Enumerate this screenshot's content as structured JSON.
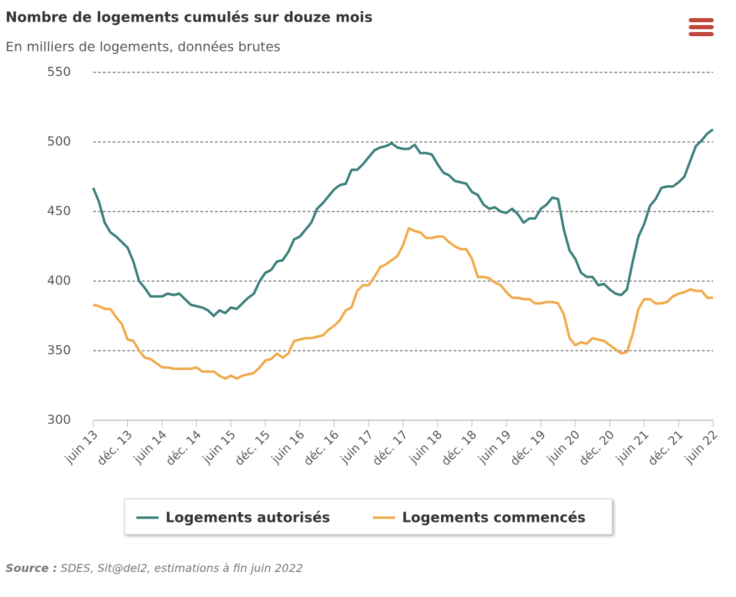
{
  "chart_data": {
    "type": "line",
    "title": "Nombre de logements cumulés sur douze mois",
    "subtitle": "En milliers de logements, données brutes",
    "source": {
      "label": "Source :",
      "text": "SDES, Sit@del2, estimations à fin juin 2022"
    },
    "categories": [
      "juin 13",
      null,
      null,
      null,
      null,
      null,
      "déc. 13",
      null,
      null,
      null,
      null,
      null,
      "juin 14",
      null,
      null,
      null,
      null,
      null,
      "déc. 14",
      null,
      null,
      null,
      null,
      null,
      "juin 15",
      null,
      null,
      null,
      null,
      null,
      "déc. 15",
      null,
      null,
      null,
      null,
      null,
      "juin 16",
      null,
      null,
      null,
      null,
      null,
      "déc. 16",
      null,
      null,
      null,
      null,
      null,
      "juin 17",
      null,
      null,
      null,
      null,
      null,
      "déc. 17",
      null,
      null,
      null,
      null,
      null,
      "juin 18",
      null,
      null,
      null,
      null,
      null,
      "déc. 18",
      null,
      null,
      null,
      null,
      null,
      "juin 19",
      null,
      null,
      null,
      null,
      null,
      "déc. 19",
      null,
      null,
      null,
      null,
      null,
      "juin 20",
      null,
      null,
      null,
      null,
      null,
      "déc. 20",
      null,
      null,
      null,
      null,
      null,
      "juin 21",
      null,
      null,
      null,
      null,
      null,
      "déc. 21",
      null,
      null,
      null,
      null,
      null,
      "juin 22"
    ],
    "series": [
      {
        "name": "Logements autorisés",
        "color": "#3a7f7a",
        "values": [
          467,
          457,
          442,
          435,
          432,
          428,
          424,
          414,
          400,
          395,
          389,
          389,
          389,
          391,
          390,
          391,
          387,
          383,
          382,
          381,
          379,
          375,
          379,
          377,
          381,
          380,
          384,
          388,
          391,
          400,
          406,
          408,
          414,
          415,
          421,
          430,
          432,
          437,
          442,
          452,
          456,
          461,
          466,
          469,
          470,
          480,
          480,
          484,
          489,
          494,
          496,
          497,
          499,
          496,
          495,
          495,
          498,
          492,
          492,
          491,
          484,
          478,
          476,
          472,
          471,
          470,
          464,
          462,
          455,
          452,
          453,
          450,
          449,
          452,
          448,
          442,
          445,
          445,
          452,
          455,
          460,
          459,
          437,
          422,
          416,
          406,
          403,
          403,
          397,
          398,
          394,
          391,
          390,
          394,
          414,
          432,
          441,
          454,
          459,
          467,
          468,
          468,
          471,
          475,
          486,
          497,
          501,
          506,
          509
        ]
      },
      {
        "name": "Logements commencés",
        "color": "#f0a94a",
        "values": [
          383,
          382,
          380,
          380,
          374,
          369,
          358,
          357,
          350,
          345,
          344,
          341,
          338,
          338,
          337,
          337,
          337,
          337,
          338,
          335,
          335,
          335,
          332,
          330,
          332,
          330,
          332,
          333,
          334,
          338,
          343,
          344,
          348,
          345,
          348,
          357,
          358,
          359,
          359,
          360,
          361,
          365,
          368,
          372,
          379,
          381,
          393,
          397,
          397,
          403,
          410,
          412,
          415,
          418,
          426,
          438,
          436,
          435,
          431,
          431,
          432,
          432,
          428,
          425,
          423,
          423,
          416,
          403,
          403,
          402,
          399,
          397,
          392,
          388,
          388,
          387,
          387,
          384,
          384,
          385,
          385,
          384,
          376,
          359,
          354,
          356,
          355,
          359,
          358,
          357,
          354,
          351,
          348,
          349,
          362,
          380,
          387,
          387,
          384,
          384,
          385,
          389,
          391,
          392,
          394,
          393,
          393,
          388,
          388
        ]
      }
    ],
    "ylim": [
      300,
      550
    ],
    "yticks": [
      300,
      350,
      400,
      450,
      500,
      550
    ],
    "grid": true
  }
}
